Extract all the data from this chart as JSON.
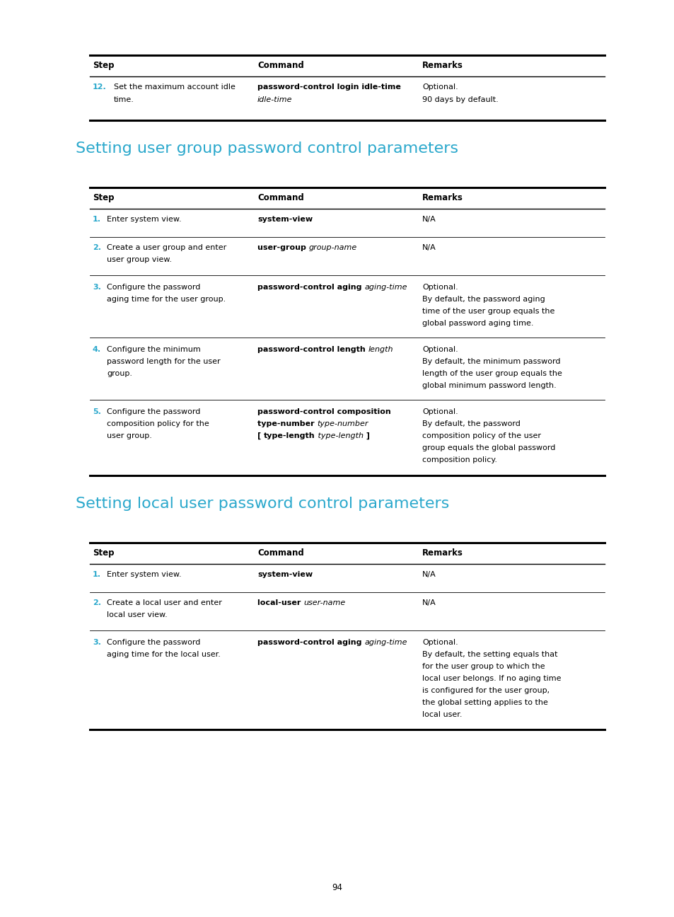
{
  "bg_color": "#ffffff",
  "text_color": "#000000",
  "cyan_color": "#2AA8CC",
  "page_number": "94",
  "section1_title": "Setting user group password control parameters",
  "section2_title": "Setting local user password control parameters"
}
